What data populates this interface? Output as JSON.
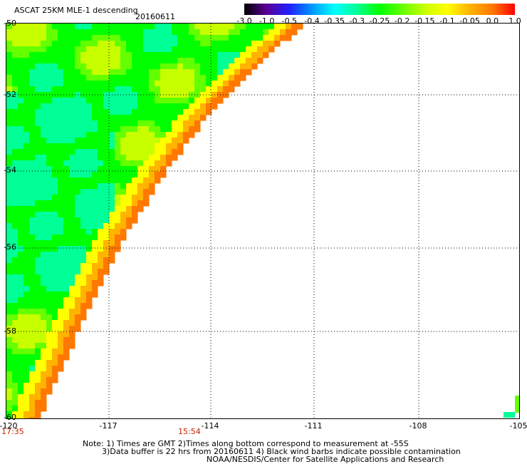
{
  "header": {
    "title": "ASCAT 25KM MLE-1 descending",
    "date": "20160611"
  },
  "colorbar": {
    "labels": [
      "-3.0",
      "-1.0",
      "-0.5",
      "-0.4",
      "-0.35",
      "-0.3",
      "-0.25",
      "-0.2",
      "-0.15",
      "-0.1",
      "-0.05",
      "0.0",
      "1.0"
    ],
    "colors": [
      "#000000",
      "#5a0096",
      "#2020ff",
      "#0096ff",
      "#00ffff",
      "#00ff96",
      "#00ff00",
      "#64ff00",
      "#c8ff00",
      "#ffff00",
      "#ffb400",
      "#ff7800",
      "#ff0000"
    ]
  },
  "axes": {
    "lat_labels": [
      "-50",
      "-52",
      "-54",
      "-56",
      "-58",
      "-60"
    ],
    "lon_labels": [
      "-120",
      "-117",
      "-114",
      "-111",
      "-108",
      "-105"
    ]
  },
  "times": [
    "17:35",
    "15:54"
  ],
  "notes": {
    "line1": "Note: 1) Times are GMT 2)Times along bottom correspond to measurement at -55S",
    "line2": "3)Data buffer is 22 hrs from 20160611 4) Black wind barbs indicate possible contamination",
    "line3": "NOAA/NESDIS/Center for Satellite Applications and Research"
  }
}
